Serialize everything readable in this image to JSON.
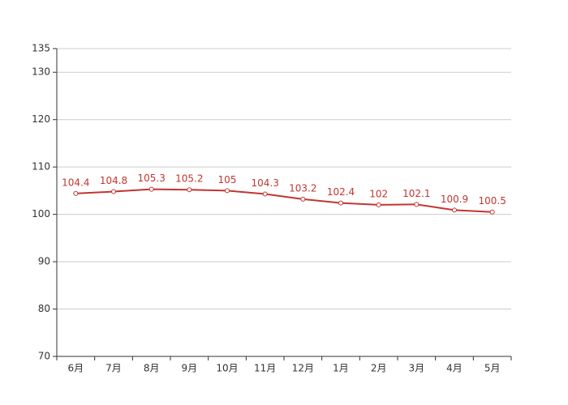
{
  "chart_data": {
    "type": "line",
    "categories": [
      "6月",
      "7月",
      "8月",
      "9月",
      "10月",
      "11月",
      "12月",
      "1月",
      "2月",
      "3月",
      "4月",
      "5月"
    ],
    "values": [
      104.4,
      104.8,
      105.3,
      105.2,
      105,
      104.3,
      103.2,
      102.4,
      102,
      102.1,
      100.9,
      100.5
    ],
    "color": "#c23531",
    "ylim": [
      70,
      135
    ],
    "yticks": [
      70,
      80,
      90,
      100,
      110,
      120,
      130,
      135
    ],
    "grid": true
  }
}
